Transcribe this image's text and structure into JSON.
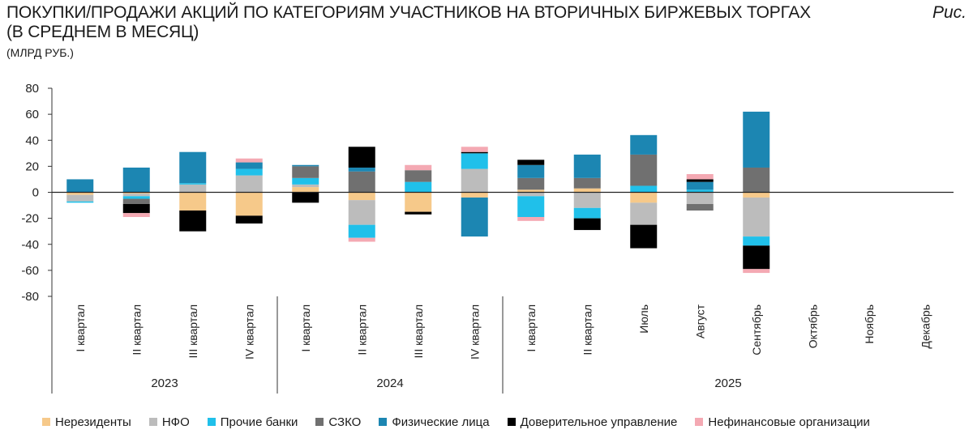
{
  "header": {
    "title_line1": "ПОКУПКИ/ПРОДАЖИ АКЦИЙ ПО КАТЕГОРИЯМ УЧАСТНИКОВ НА ВТОРИЧНЫХ БИРЖЕВЫХ ТОРГАХ",
    "title_line2": "(В СРЕДНЕМ В МЕСЯЦ)",
    "figure_label": "Рис.",
    "units": "(МЛРД РУБ.)"
  },
  "chart_data": {
    "type": "bar",
    "stacked": true,
    "title": "ПОКУПКИ/ПРОДАЖИ АКЦИЙ ПО КАТЕГОРИЯМ УЧАСТНИКОВ НА ВТОРИЧНЫХ БИРЖЕВЫХ ТОРГАХ (В СРЕДНЕМ В МЕСЯЦ)",
    "ylabel": "(МЛРД РУБ.)",
    "ylim": [
      -80,
      80
    ],
    "yticks": [
      80,
      60,
      40,
      20,
      0,
      -20,
      -40,
      -60,
      -80
    ],
    "categories": [
      "I квартал",
      "II квартал",
      "III квартал",
      "IV квартал",
      "I квартал",
      "II квартал",
      "III квартал",
      "IV квартал",
      "I квартал",
      "II квартал",
      "Июль",
      "Август",
      "Сентябрь",
      "Октябрь",
      "Ноябрь",
      "Декабрь"
    ],
    "groups": [
      {
        "label": "2023",
        "count": 4
      },
      {
        "label": "2024",
        "count": 4
      },
      {
        "label": "2025",
        "count": 8
      }
    ],
    "series": [
      {
        "name": "Нерезиденты",
        "color": "#f6c98a",
        "values": [
          -2,
          -1,
          -14,
          -18,
          4,
          -6,
          -15,
          -4,
          2,
          3,
          -8,
          0,
          -4,
          null,
          null,
          null
        ]
      },
      {
        "name": "НФО",
        "color": "#bcbcbc",
        "values": [
          -5,
          -2,
          6,
          13,
          2,
          -19,
          0,
          18,
          -3,
          -12,
          -17,
          -9,
          -30,
          null,
          null,
          null
        ]
      },
      {
        "name": "Прочие банки",
        "color": "#20c0ea",
        "values": [
          -1,
          -2,
          1,
          5,
          5,
          -10,
          8,
          12,
          -16,
          -8,
          5,
          2,
          -7,
          null,
          null,
          null
        ]
      },
      {
        "name": "СЗКО",
        "color": "#707070",
        "values": [
          0,
          -4,
          0,
          0,
          9,
          16,
          9,
          0,
          9,
          8,
          24,
          -5,
          19,
          null,
          null,
          null
        ]
      },
      {
        "name": "Физические лица",
        "color": "#1c86b2",
        "values": [
          10,
          19,
          24,
          5,
          1,
          3,
          0,
          -30,
          10,
          18,
          15,
          6,
          43,
          null,
          null,
          null
        ]
      },
      {
        "name": "Доверительное управление",
        "color": "#000000",
        "values": [
          0,
          -7,
          -16,
          -6,
          -8,
          16,
          -2,
          1,
          4,
          -9,
          -18,
          2,
          -18,
          null,
          null,
          null
        ]
      },
      {
        "name": "Нефинансовые организации",
        "color": "#f4a9b3",
        "values": [
          0,
          -3,
          0,
          3,
          0,
          -3,
          4,
          4,
          -3,
          0,
          0,
          4,
          -3,
          null,
          null,
          null
        ]
      }
    ]
  }
}
